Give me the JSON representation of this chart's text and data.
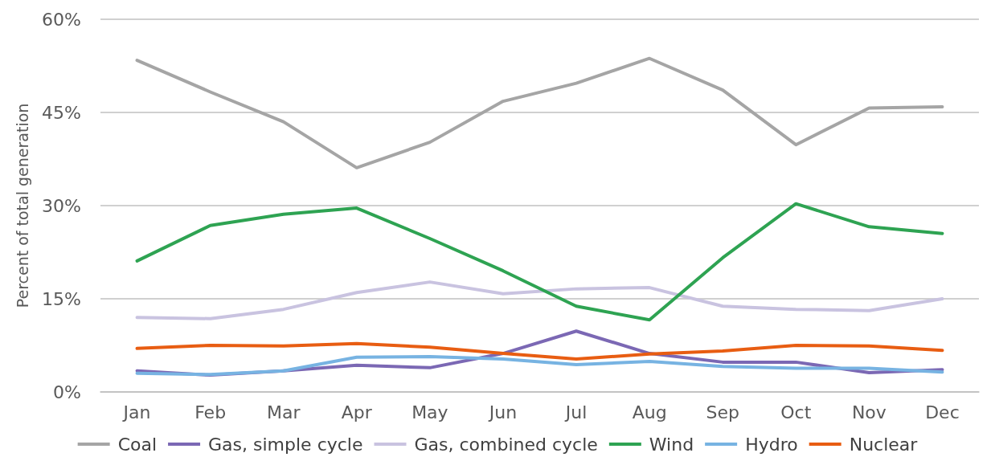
{
  "chart_data": {
    "type": "line",
    "ylabel": "Percent of total generation",
    "categories": [
      "Jan",
      "Feb",
      "Mar",
      "Apr",
      "May",
      "Jun",
      "Jul",
      "Aug",
      "Sep",
      "Oct",
      "Nov",
      "Dec"
    ],
    "series": [
      {
        "name": "Coal",
        "color": "#a5a5a5",
        "values": [
          53.4,
          48.3,
          43.5,
          36.1,
          40.2,
          46.8,
          49.7,
          53.7,
          48.6,
          39.8,
          45.7,
          45.9
        ]
      },
      {
        "name": "Gas, simple cycle",
        "color": "#7b68b4",
        "values": [
          3.4,
          2.7,
          3.4,
          4.3,
          3.9,
          6.2,
          9.8,
          6.2,
          4.8,
          4.8,
          3.1,
          3.6
        ]
      },
      {
        "name": "Gas, combined cycle",
        "color": "#c9c3e0",
        "values": [
          12.0,
          11.8,
          13.3,
          16.0,
          17.7,
          15.8,
          16.6,
          16.8,
          13.8,
          13.3,
          13.1,
          15.0
        ]
      },
      {
        "name": "Wind",
        "color": "#2ea352",
        "values": [
          21.1,
          26.8,
          28.6,
          29.6,
          24.7,
          19.5,
          13.8,
          11.6,
          21.6,
          30.3,
          26.6,
          25.5
        ]
      },
      {
        "name": "Hydro",
        "color": "#77b3e2",
        "values": [
          3.0,
          2.8,
          3.4,
          5.6,
          5.7,
          5.3,
          4.4,
          4.9,
          4.1,
          3.8,
          3.8,
          3.2
        ]
      },
      {
        "name": "Nuclear",
        "color": "#e85d12",
        "values": [
          7.0,
          7.5,
          7.4,
          7.8,
          7.2,
          6.2,
          5.3,
          6.1,
          6.6,
          7.5,
          7.4,
          6.7
        ]
      }
    ],
    "ylim": [
      0,
      60
    ],
    "yticks": [
      {
        "value": 0,
        "label": "0%"
      },
      {
        "value": 15,
        "label": "15%"
      },
      {
        "value": 30,
        "label": "30%"
      },
      {
        "value": 45,
        "label": "45%"
      },
      {
        "value": 60,
        "label": "60%"
      }
    ],
    "grid": "y",
    "legend": "bottom",
    "marker": "none",
    "line_style": "solid"
  }
}
